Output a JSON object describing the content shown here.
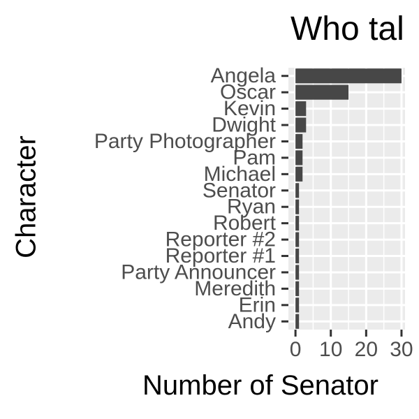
{
  "chart_data": {
    "type": "bar",
    "orientation": "horizontal",
    "title": "Who tal",
    "xlabel": "Number of Senator",
    "ylabel": "Character",
    "categories": [
      "Angela",
      "Oscar",
      "Kevin",
      "Dwight",
      "Party Photographer",
      "Pam",
      "Michael",
      "Senator",
      "Ryan",
      "Robert",
      "Reporter #2",
      "Reporter #1",
      "Party Announcer",
      "Meredith",
      "Erin",
      "Andy"
    ],
    "values": [
      30,
      15,
      3,
      3,
      2,
      2,
      2,
      1,
      1,
      1,
      1,
      1,
      1,
      1,
      1,
      1
    ],
    "xlim": [
      -2,
      31
    ],
    "xticks": [
      0,
      10,
      20,
      30
    ],
    "xtick_labels": [
      "0",
      "10",
      "20",
      "30"
    ],
    "grid": true,
    "colors": {
      "bar": "#474747",
      "panel": "#ebebeb",
      "grid": "#ffffff",
      "tick_text": "#4d4d4d"
    }
  }
}
